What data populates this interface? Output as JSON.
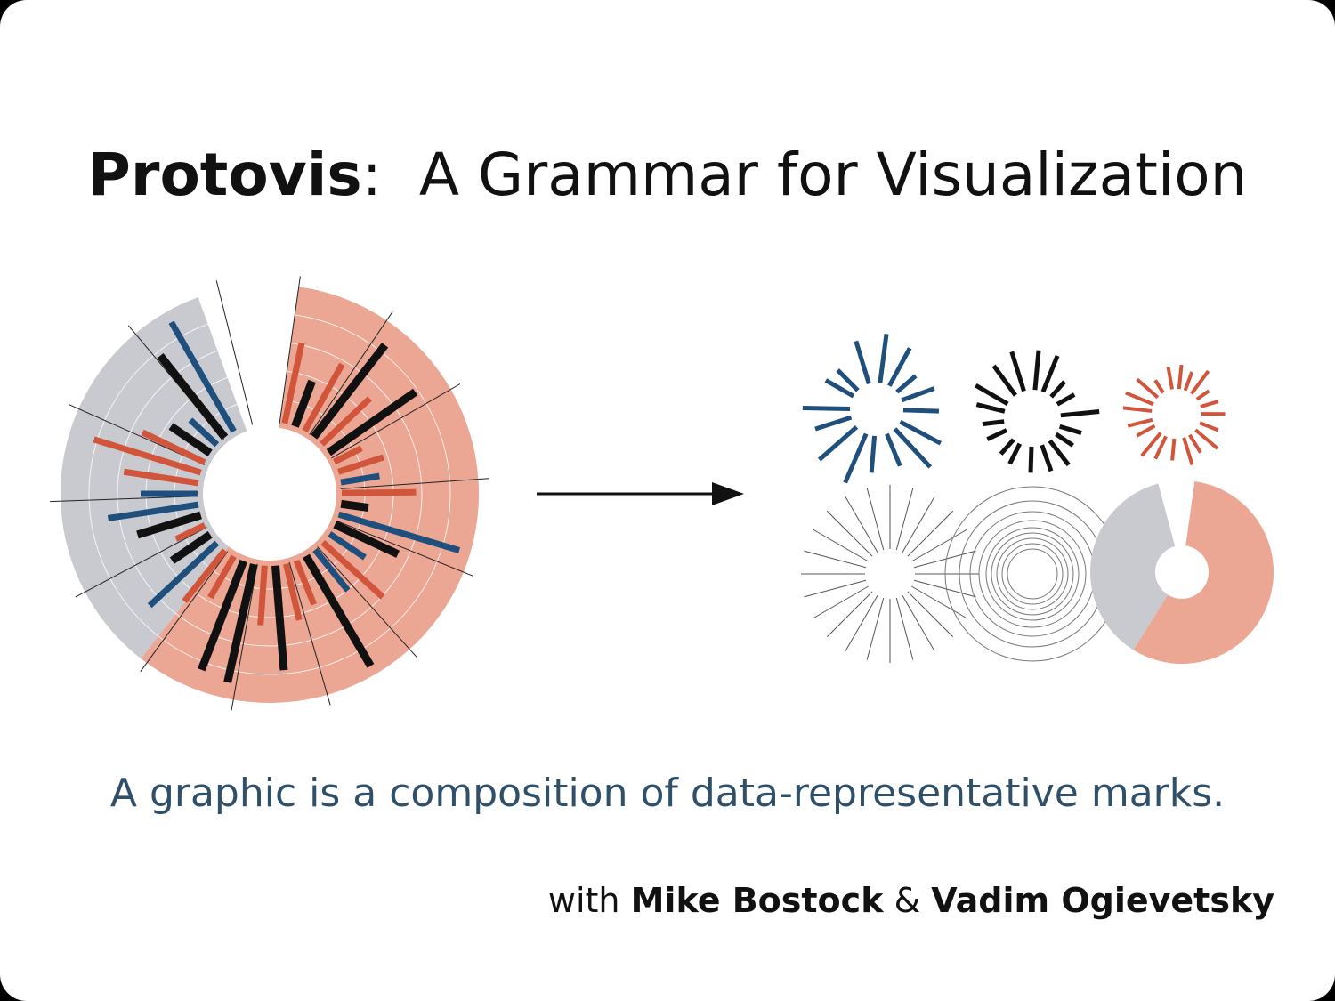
{
  "title": {
    "name": "Protovis",
    "separator": ":",
    "rest": "A Grammar for Visualization"
  },
  "caption": "A graphic is a composition of data-representative marks.",
  "credits": {
    "prefix": "with",
    "author1": "Mike Bostock",
    "amp": "&",
    "author2": "Vadim Ogievetsky"
  },
  "colors": {
    "salmon": "#eba694",
    "gray": "#c9c9d0",
    "navy": "#1f4f7c",
    "orange": "#d0553a",
    "black": "#111111",
    "caption": "#2f5068"
  },
  "diagram": {
    "left": "composite radial chart (stacked polar bars)",
    "arrow": "right-arrow",
    "right": "decomposed marks: three radial bar sets, rule wedges, concentric rings, donut wedges"
  }
}
